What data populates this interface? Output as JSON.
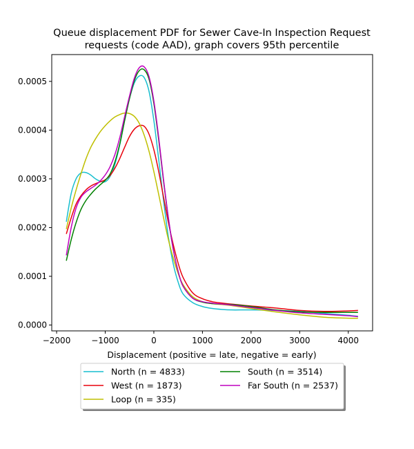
{
  "chart_data": {
    "type": "line",
    "title_lines": [
      "Queue displacement PDF for Sewer Cave-In Inspection Request",
      "requests (code AAD), graph covers 95th percentile"
    ],
    "xlabel": "Displacement (positive = late, negative = early)",
    "ylabel": "",
    "xlim": [
      -2100,
      4500
    ],
    "ylim": [
      -1.2e-05,
      0.000555
    ],
    "x_ticks": [
      -2000,
      -1000,
      0,
      1000,
      2000,
      3000,
      4000
    ],
    "x_tick_labels": [
      "−2000",
      "−1000",
      "0",
      "1000",
      "2000",
      "3000",
      "4000"
    ],
    "y_ticks": [
      0,
      0.0001,
      0.0002,
      0.0003,
      0.0004,
      0.0005
    ],
    "y_tick_labels": [
      "0.0000",
      "0.0001",
      "0.0002",
      "0.0003",
      "0.0004",
      "0.0005"
    ],
    "grid": false,
    "legend_position": "bottom-center, outside plot",
    "series": [
      {
        "name": "North (n = 4833)",
        "color": "#17becf",
        "points": [
          [
            -1800,
            0.000212
          ],
          [
            -1700,
            0.00027
          ],
          [
            -1600,
            0.0003
          ],
          [
            -1500,
            0.000312
          ],
          [
            -1400,
            0.000313
          ],
          [
            -1300,
            0.000308
          ],
          [
            -1200,
            0.0003
          ],
          [
            -1100,
            0.000295
          ],
          [
            -1000,
            0.000294
          ],
          [
            -900,
            0.000305
          ],
          [
            -800,
            0.00033
          ],
          [
            -700,
            0.00037
          ],
          [
            -600,
            0.00042
          ],
          [
            -500,
            0.000465
          ],
          [
            -400,
            0.000497
          ],
          [
            -300,
            0.000511
          ],
          [
            -200,
            0.000508
          ],
          [
            -100,
            0.00048
          ],
          [
            0,
            0.00042
          ],
          [
            100,
            0.00034
          ],
          [
            200,
            0.000255
          ],
          [
            300,
            0.00018
          ],
          [
            400,
            0.000125
          ],
          [
            500,
            8.8e-05
          ],
          [
            600,
            6.4e-05
          ],
          [
            800,
            4.6e-05
          ],
          [
            1000,
            3.8e-05
          ],
          [
            1200,
            3.4e-05
          ],
          [
            1400,
            3.2e-05
          ],
          [
            1600,
            3.1e-05
          ],
          [
            2000,
            3.1e-05
          ],
          [
            2500,
            3e-05
          ],
          [
            3000,
            2.8e-05
          ],
          [
            3500,
            2.4e-05
          ],
          [
            4000,
            2e-05
          ],
          [
            4200,
            1.8e-05
          ]
        ]
      },
      {
        "name": "West (n = 1873)",
        "color": "#e8000b",
        "points": [
          [
            -1800,
            0.000187
          ],
          [
            -1700,
            0.00022
          ],
          [
            -1600,
            0.000248
          ],
          [
            -1500,
            0.000265
          ],
          [
            -1400,
            0.000277
          ],
          [
            -1300,
            0.000285
          ],
          [
            -1200,
            0.00029
          ],
          [
            -1100,
            0.000294
          ],
          [
            -1000,
            0.000298
          ],
          [
            -900,
            0.000307
          ],
          [
            -800,
            0.000322
          ],
          [
            -700,
            0.000342
          ],
          [
            -600,
            0.000365
          ],
          [
            -500,
            0.000387
          ],
          [
            -400,
            0.000402
          ],
          [
            -300,
            0.000409
          ],
          [
            -200,
            0.000408
          ],
          [
            -100,
            0.000392
          ],
          [
            0,
            0.00036
          ],
          [
            100,
            0.000315
          ],
          [
            200,
            0.000262
          ],
          [
            300,
            0.00021
          ],
          [
            400,
            0.000165
          ],
          [
            500,
            0.000127
          ],
          [
            600,
            9.8e-05
          ],
          [
            800,
            6.6e-05
          ],
          [
            1000,
            5.4e-05
          ],
          [
            1200,
            4.8e-05
          ],
          [
            1400,
            4.5e-05
          ],
          [
            1600,
            4.3e-05
          ],
          [
            2000,
            3.9e-05
          ],
          [
            2500,
            3.5e-05
          ],
          [
            3000,
            3e-05
          ],
          [
            3500,
            2.8e-05
          ],
          [
            4000,
            2.9e-05
          ],
          [
            4200,
            3e-05
          ]
        ]
      },
      {
        "name": "Loop (n = 335)",
        "color": "#bfbf00",
        "points": [
          [
            -1800,
            0.000197
          ],
          [
            -1700,
            0.00024
          ],
          [
            -1600,
            0.000277
          ],
          [
            -1500,
            0.00031
          ],
          [
            -1400,
            0.00034
          ],
          [
            -1300,
            0.000364
          ],
          [
            -1200,
            0.000382
          ],
          [
            -1100,
            0.000397
          ],
          [
            -1000,
            0.000409
          ],
          [
            -900,
            0.000419
          ],
          [
            -800,
            0.000427
          ],
          [
            -700,
            0.000432
          ],
          [
            -600,
            0.000435
          ],
          [
            -500,
            0.000434
          ],
          [
            -400,
            0.000428
          ],
          [
            -300,
            0.000414
          ],
          [
            -200,
            0.00039
          ],
          [
            -100,
            0.000357
          ],
          [
            0,
            0.000315
          ],
          [
            100,
            0.000268
          ],
          [
            200,
            0.00022
          ],
          [
            300,
            0.000175
          ],
          [
            400,
            0.000137
          ],
          [
            500,
            0.000106
          ],
          [
            600,
            8.3e-05
          ],
          [
            800,
            5.8e-05
          ],
          [
            1000,
            4.8e-05
          ],
          [
            1200,
            4.4e-05
          ],
          [
            1400,
            4.2e-05
          ],
          [
            1600,
            4e-05
          ],
          [
            2000,
            3.4e-05
          ],
          [
            2500,
            2.7e-05
          ],
          [
            3000,
            2.1e-05
          ],
          [
            3500,
            1.6e-05
          ],
          [
            4000,
            1.4e-05
          ],
          [
            4200,
            1.4e-05
          ]
        ]
      },
      {
        "name": "South (n = 3514)",
        "color": "#008000",
        "points": [
          [
            -1800,
            0.000132
          ],
          [
            -1700,
            0.000175
          ],
          [
            -1600,
            0.00021
          ],
          [
            -1500,
            0.000237
          ],
          [
            -1400,
            0.000255
          ],
          [
            -1300,
            0.000268
          ],
          [
            -1200,
            0.000279
          ],
          [
            -1100,
            0.000288
          ],
          [
            -1000,
            0.000297
          ],
          [
            -900,
            0.00031
          ],
          [
            -800,
            0.000335
          ],
          [
            -700,
            0.000372
          ],
          [
            -600,
            0.00042
          ],
          [
            -500,
            0.000465
          ],
          [
            -400,
            0.000502
          ],
          [
            -300,
            0.000522
          ],
          [
            -200,
            0.000524
          ],
          [
            -100,
            0.000505
          ],
          [
            0,
            0.000455
          ],
          [
            100,
            0.00038
          ],
          [
            200,
            0.000295
          ],
          [
            300,
            0.000218
          ],
          [
            400,
            0.000155
          ],
          [
            500,
            0.00011
          ],
          [
            600,
            8e-05
          ],
          [
            800,
            5.5e-05
          ],
          [
            1000,
            4.7e-05
          ],
          [
            1200,
            4.4e-05
          ],
          [
            1400,
            4.3e-05
          ],
          [
            1600,
            4.2e-05
          ],
          [
            2000,
            3.8e-05
          ],
          [
            2500,
            3.1e-05
          ],
          [
            3000,
            2.7e-05
          ],
          [
            3500,
            2.6e-05
          ],
          [
            4000,
            2.6e-05
          ],
          [
            4200,
            2.6e-05
          ]
        ]
      },
      {
        "name": "Far South (n = 2537)",
        "color": "#bf00bf",
        "points": [
          [
            -1800,
            0.000143
          ],
          [
            -1700,
            0.0002
          ],
          [
            -1600,
            0.00024
          ],
          [
            -1500,
            0.000262
          ],
          [
            -1400,
            0.000273
          ],
          [
            -1300,
            0.00028
          ],
          [
            -1200,
            0.000287
          ],
          [
            -1100,
            0.000296
          ],
          [
            -1000,
            0.000308
          ],
          [
            -900,
            0.000325
          ],
          [
            -800,
            0.00035
          ],
          [
            -700,
            0.000385
          ],
          [
            -600,
            0.000428
          ],
          [
            -500,
            0.00047
          ],
          [
            -400,
            0.000507
          ],
          [
            -300,
            0.000528
          ],
          [
            -200,
            0.00053
          ],
          [
            -100,
            0.00051
          ],
          [
            0,
            0.00046
          ],
          [
            100,
            0.000385
          ],
          [
            200,
            0.000298
          ],
          [
            300,
            0.00022
          ],
          [
            400,
            0.000155
          ],
          [
            500,
            0.00011
          ],
          [
            600,
            8e-05
          ],
          [
            800,
            5.5e-05
          ],
          [
            1000,
            4.8e-05
          ],
          [
            1200,
            4.5e-05
          ],
          [
            1400,
            4.3e-05
          ],
          [
            1600,
            4.1e-05
          ],
          [
            2000,
            3.6e-05
          ],
          [
            2500,
            3e-05
          ],
          [
            3000,
            2.5e-05
          ],
          [
            3500,
            2.2e-05
          ],
          [
            4000,
            1.9e-05
          ],
          [
            4200,
            1.7e-05
          ]
        ]
      }
    ]
  }
}
